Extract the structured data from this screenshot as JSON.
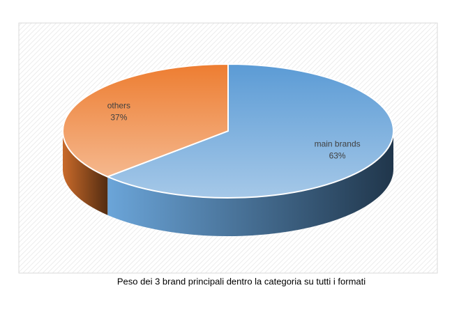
{
  "chart_data": {
    "type": "pie",
    "caption": "Peso dei 3 brand principali dentro la categoria su tutti i formati",
    "categories": [
      "main brands",
      "others"
    ],
    "values": [
      63,
      37
    ],
    "value_labels": [
      "63%",
      "37%"
    ],
    "colors": [
      "#5b9bd5",
      "#ed7d31"
    ]
  }
}
